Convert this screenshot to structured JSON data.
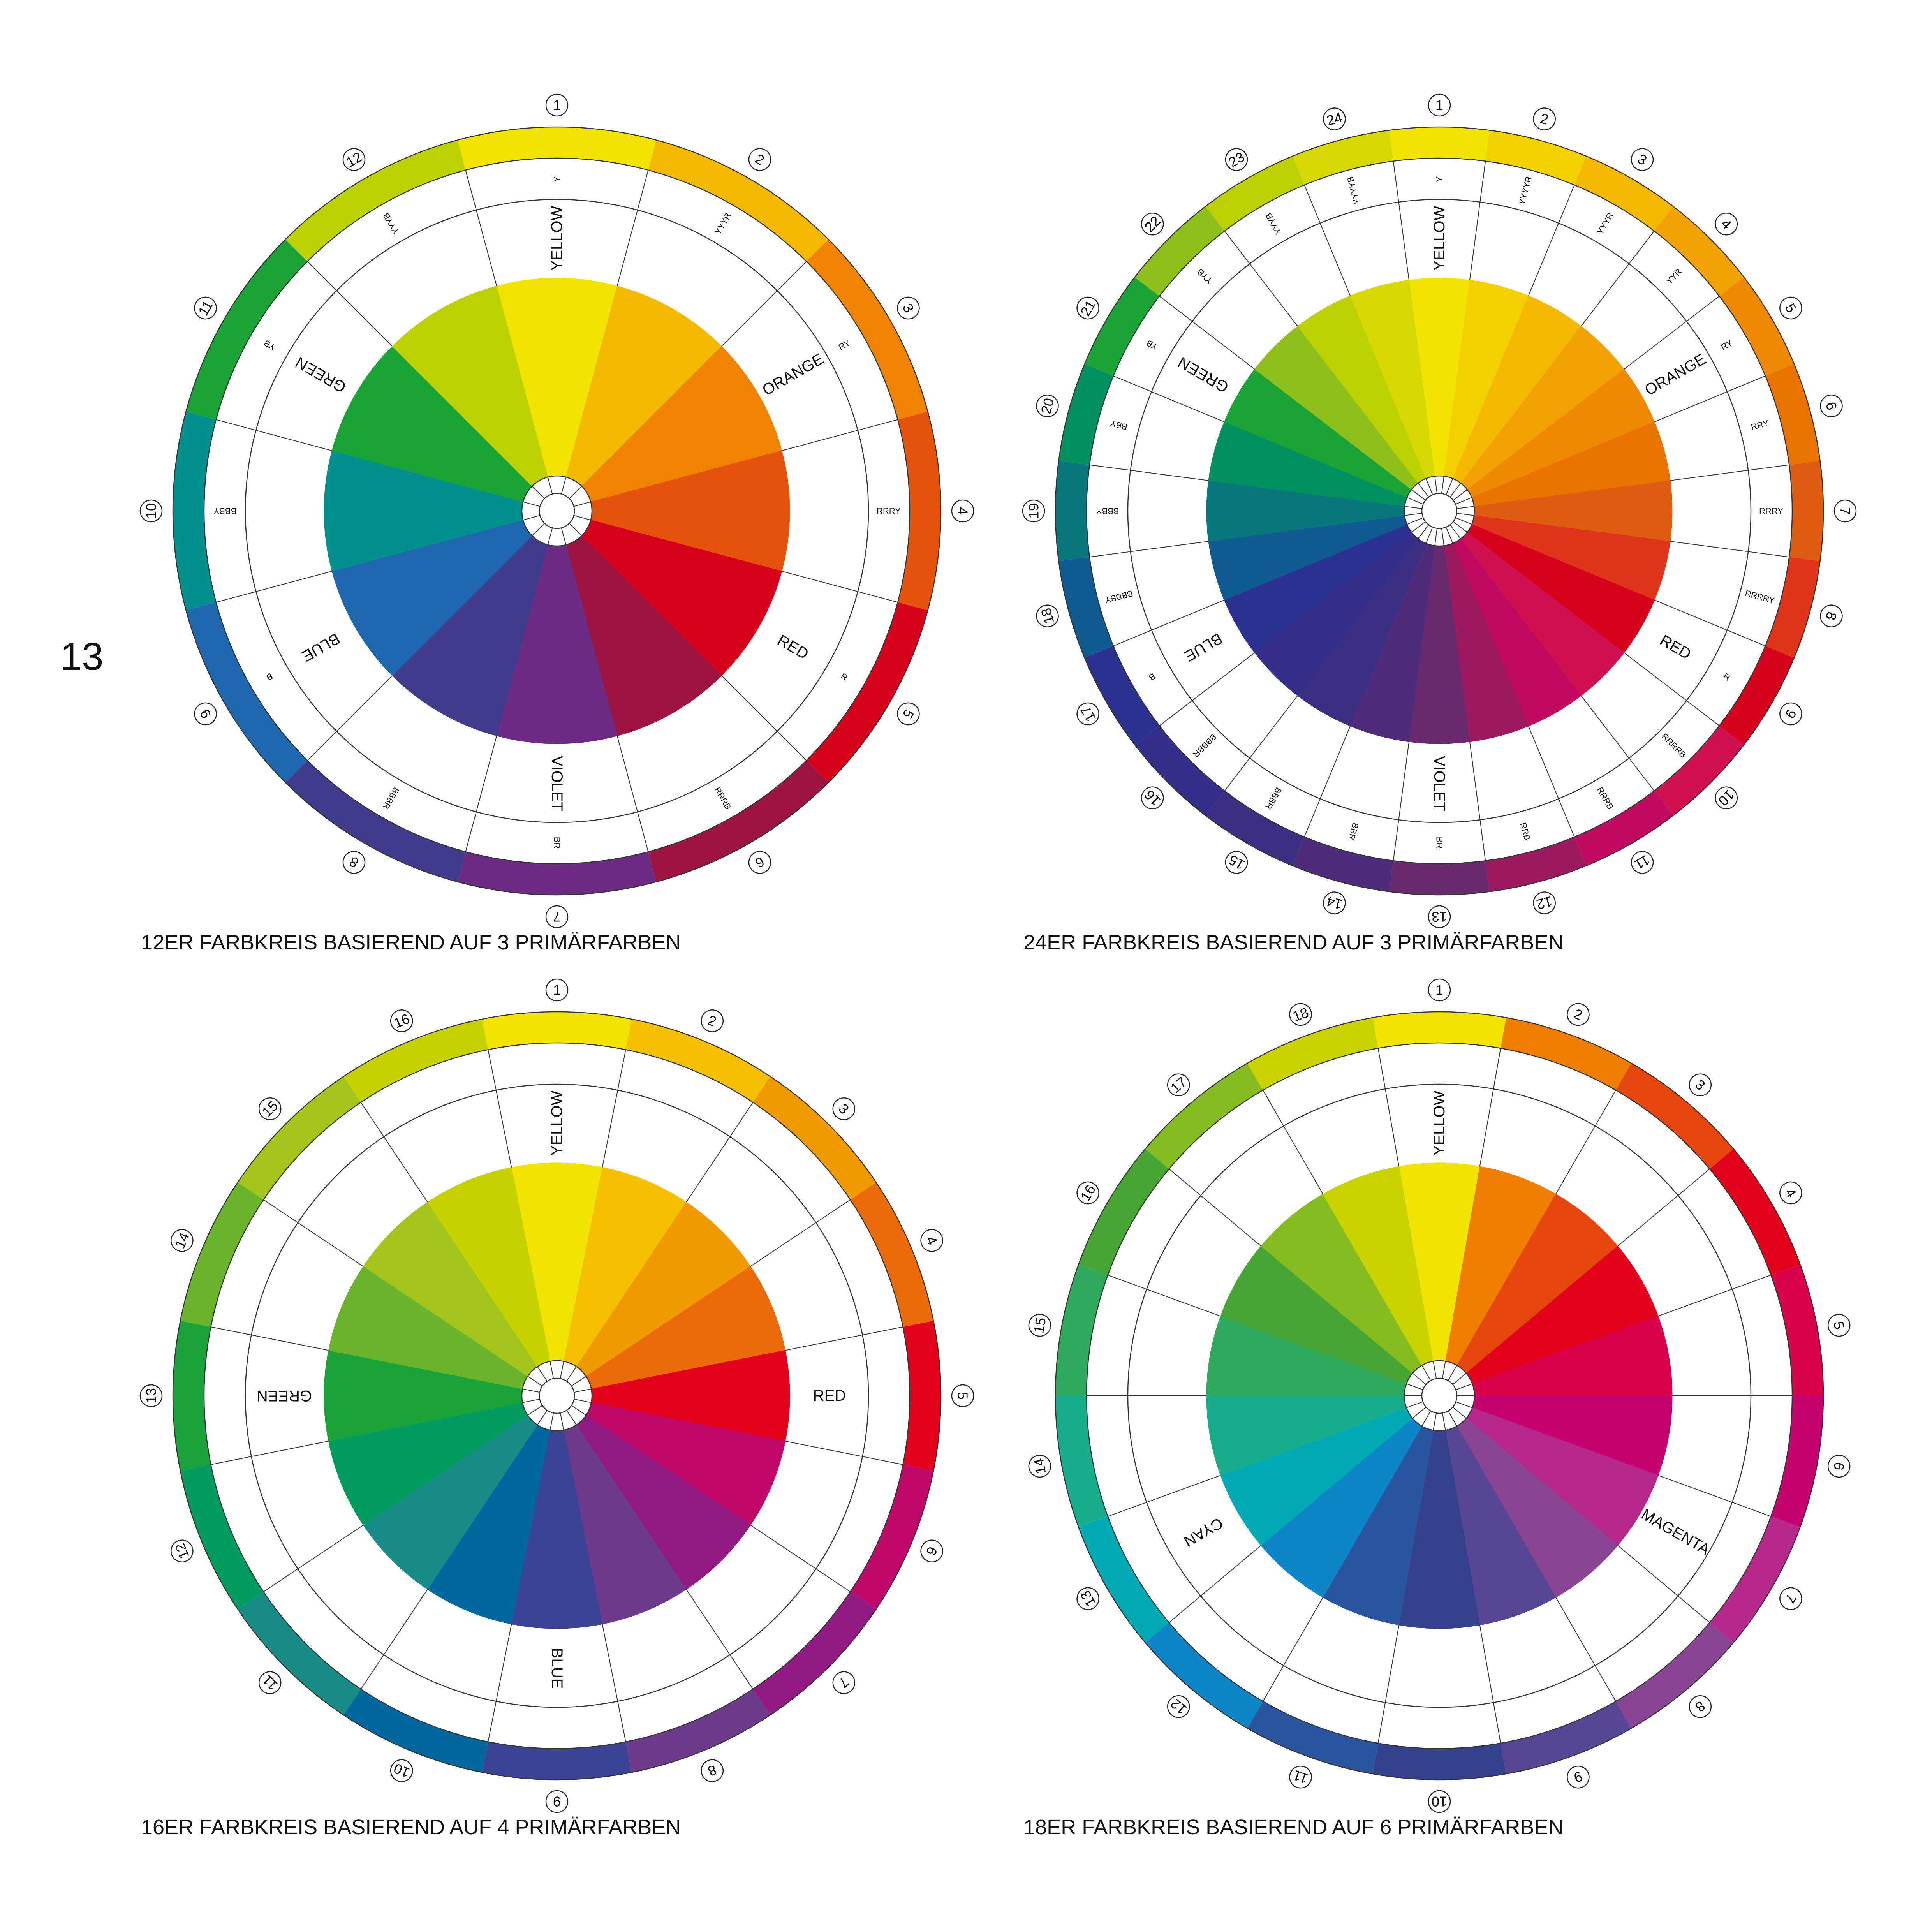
{
  "page_number": "13",
  "wheels": [
    {
      "caption": "12ER FARBKREIS BASIEREND AUF 3 PRIMÄRFARBEN",
      "segments": [
        {
          "number": 1,
          "color": "#f0e400",
          "code": "Y",
          "name": "YELLOW"
        },
        {
          "number": 2,
          "color": "#f5b800",
          "code": "YYYR"
        },
        {
          "number": 3,
          "color": "#ef8200",
          "code": "RY",
          "name": "ORANGE"
        },
        {
          "number": 4,
          "color": "#e5530a",
          "code": "RRRY"
        },
        {
          "number": 5,
          "color": "#d7001a",
          "code": "R",
          "name": "RED"
        },
        {
          "number": 6,
          "color": "#9b1442",
          "code": "RRRB"
        },
        {
          "number": 7,
          "color": "#6c2c84",
          "code": "BR",
          "name": "VIOLET"
        },
        {
          "number": 8,
          "color": "#3f3b8d",
          "code": "BBBR"
        },
        {
          "number": 9,
          "color": "#1f67ae",
          "code": "B",
          "name": "BLUE"
        },
        {
          "number": 10,
          "color": "#00918f",
          "code": "BBBY"
        },
        {
          "number": 11,
          "color": "#1aa336",
          "code": "YB",
          "name": "GREEN"
        },
        {
          "number": 12,
          "color": "#bdd000",
          "code": "YYYB"
        }
      ]
    },
    {
      "caption": "24ER FARBKREIS BASIEREND AUF 3 PRIMÄRFARBEN",
      "segments": [
        {
          "number": 1,
          "color": "#f0e400",
          "code": "Y",
          "name": "YELLOW"
        },
        {
          "number": 2,
          "color": "#f4d000",
          "code": "YYYYR"
        },
        {
          "number": 3,
          "color": "#f5b800",
          "code": "YYYR"
        },
        {
          "number": 4,
          "color": "#f2a100",
          "code": "YYR"
        },
        {
          "number": 5,
          "color": "#ef8a00",
          "code": "RY",
          "name": "ORANGE"
        },
        {
          "number": 6,
          "color": "#ea7300",
          "code": "RRY"
        },
        {
          "number": 7,
          "color": "#df5d0e",
          "code": "RRRY"
        },
        {
          "number": 8,
          "color": "#e0351a",
          "code": "RRRRY"
        },
        {
          "number": 9,
          "color": "#d7001a",
          "code": "R",
          "name": "RED"
        },
        {
          "number": 10,
          "color": "#d0104f",
          "code": "RRRRB"
        },
        {
          "number": 11,
          "color": "#c10a5f",
          "code": "RRRB"
        },
        {
          "number": 12,
          "color": "#9b1a60",
          "code": "RRB"
        },
        {
          "number": 13,
          "color": "#6a2a6f",
          "code": "BR",
          "name": "VIOLET"
        },
        {
          "number": 14,
          "color": "#4f2c7c",
          "code": "BBR"
        },
        {
          "number": 15,
          "color": "#3d2e86",
          "code": "BBBR"
        },
        {
          "number": 16,
          "color": "#332f8a",
          "code": "BBBBR"
        },
        {
          "number": 17,
          "color": "#2c3190",
          "code": "B",
          "name": "BLUE"
        },
        {
          "number": 18,
          "color": "#0f5b92",
          "code": "BBBBY"
        },
        {
          "number": 19,
          "color": "#06787e",
          "code": "BBBY"
        },
        {
          "number": 20,
          "color": "#00915e",
          "code": "BBY"
        },
        {
          "number": 21,
          "color": "#1aa336",
          "code": "YB",
          "name": "GREEN"
        },
        {
          "number": 22,
          "color": "#8fbf1a",
          "code": "YYB"
        },
        {
          "number": 23,
          "color": "#bdd000",
          "code": "YYYB"
        },
        {
          "number": 24,
          "color": "#d6d900",
          "code": "YYYYB"
        }
      ]
    },
    {
      "caption": "16ER FARBKREIS BASIEREND AUF 4 PRIMÄRFARBEN",
      "segments": [
        {
          "number": 1,
          "color": "#f0e400",
          "name": "YELLOW"
        },
        {
          "number": 2,
          "color": "#f5c000"
        },
        {
          "number": 3,
          "color": "#f29a00"
        },
        {
          "number": 4,
          "color": "#eb6a0a"
        },
        {
          "number": 5,
          "color": "#e2001a",
          "name": "RED"
        },
        {
          "number": 6,
          "color": "#c0096a"
        },
        {
          "number": 7,
          "color": "#921a82"
        },
        {
          "number": 8,
          "color": "#6d3a8c"
        },
        {
          "number": 9,
          "color": "#3c4394",
          "name": "BLUE"
        },
        {
          "number": 10,
          "color": "#0067a0"
        },
        {
          "number": 11,
          "color": "#178d86"
        },
        {
          "number": 12,
          "color": "#009b5f"
        },
        {
          "number": 13,
          "color": "#1aa33a",
          "name": "GREEN"
        },
        {
          "number": 14,
          "color": "#6ab42b"
        },
        {
          "number": 15,
          "color": "#a3c41a"
        },
        {
          "number": 16,
          "color": "#c4d200"
        }
      ]
    },
    {
      "caption": "18ER FARBKREIS BASIEREND AUF 6 PRIMÄRFARBEN",
      "segments": [
        {
          "number": 1,
          "color": "#f0e400",
          "name": "YELLOW"
        },
        {
          "number": 2,
          "color": "#ef7d00"
        },
        {
          "number": 3,
          "color": "#e6460e"
        },
        {
          "number": 4,
          "color": "#e2001a"
        },
        {
          "number": 5,
          "color": "#d9004c"
        },
        {
          "number": 6,
          "color": "#c6006f"
        },
        {
          "number": 7,
          "color": "#b6288a",
          "name": "MAGENTA"
        },
        {
          "number": 8,
          "color": "#8a4592"
        },
        {
          "number": 9,
          "color": "#584595"
        },
        {
          "number": 10,
          "color": "#35408f"
        },
        {
          "number": 11,
          "color": "#2c55a0"
        },
        {
          "number": 12,
          "color": "#0e85c8"
        },
        {
          "number": 13,
          "color": "#00aab5",
          "name": "CYAN"
        },
        {
          "number": 14,
          "color": "#17ae8c"
        },
        {
          "number": 15,
          "color": "#2eab5c"
        },
        {
          "number": 16,
          "color": "#46a533"
        },
        {
          "number": 17,
          "color": "#86bc1f"
        },
        {
          "number": 18,
          "color": "#c8d300"
        }
      ]
    }
  ]
}
